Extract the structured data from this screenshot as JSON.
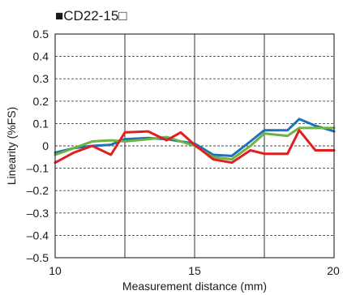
{
  "chart_data": {
    "type": "line",
    "title": "■CD22-15□",
    "xlabel": "Measurement distance (mm)",
    "ylabel": "Linearity (%FS)",
    "xlim": [
      10,
      20
    ],
    "ylim": [
      -0.5,
      0.5
    ],
    "x_ticks": [
      "10",
      "15",
      "20"
    ],
    "y_ticks": [
      "0.5",
      "0.4",
      "0.3",
      "0.2",
      "0.1",
      "0",
      "–0.1",
      "–0.2",
      "–0.3",
      "–0.4",
      "–0.5"
    ],
    "x_tick_values": [
      10,
      15,
      20
    ],
    "y_tick_values": [
      0.5,
      0.4,
      0.3,
      0.2,
      0.1,
      0,
      -0.1,
      -0.2,
      -0.3,
      -0.4,
      -0.5
    ],
    "vertical_grid": [
      12.5,
      15,
      17.5
    ],
    "grid": true,
    "series": [
      {
        "color": "#1f6fba",
        "x": [
          10,
          10.67,
          11.33,
          12,
          12.5,
          13.33,
          14,
          14.5,
          15,
          15.67,
          16.33,
          17,
          17.5,
          18.33,
          18.75,
          19.33,
          20
        ],
        "values": [
          -0.03,
          -0.01,
          0.0,
          0.005,
          0.03,
          0.035,
          0.03,
          0.02,
          0.01,
          -0.04,
          -0.045,
          0.02,
          0.07,
          0.07,
          0.12,
          0.09,
          0.065
        ]
      },
      {
        "color": "#6cb33f",
        "x": [
          10,
          10.67,
          11.33,
          12,
          12.5,
          13.33,
          14,
          14.5,
          15,
          15.67,
          16.33,
          17,
          17.5,
          18.33,
          18.75,
          19.33,
          20
        ],
        "values": [
          -0.04,
          -0.01,
          0.02,
          0.025,
          0.02,
          0.03,
          0.04,
          0.02,
          0.0,
          -0.05,
          -0.06,
          0.0,
          0.055,
          0.045,
          0.08,
          0.08,
          0.08
        ]
      },
      {
        "color": "#e02020",
        "x": [
          10,
          10.67,
          11.33,
          12,
          12.5,
          13.33,
          14,
          14.5,
          15,
          15.67,
          16.33,
          17,
          17.5,
          18.33,
          18.75,
          19.33,
          20
        ],
        "values": [
          -0.075,
          -0.03,
          0.0,
          -0.04,
          0.06,
          0.065,
          0.025,
          0.06,
          0.005,
          -0.06,
          -0.075,
          -0.02,
          -0.035,
          -0.035,
          0.07,
          -0.02,
          -0.02
        ]
      }
    ]
  }
}
